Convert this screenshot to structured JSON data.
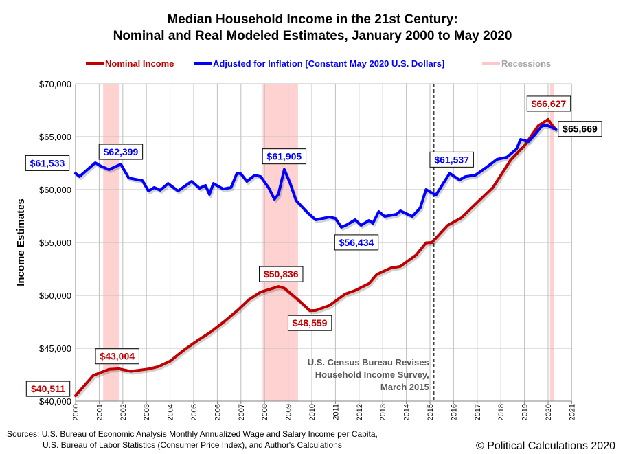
{
  "chart_data": {
    "type": "line",
    "title_line1": "Median Household Income in the 21st Century:",
    "title_line2": "Nominal and Real Modeled Estimates, January 2000 to May 2020",
    "ylabel": "Income Estimates",
    "xlabel": "",
    "ylim": [
      40000,
      70000
    ],
    "xlim": [
      "2000-01",
      "2021-01"
    ],
    "yticks": [
      40000,
      45000,
      50000,
      55000,
      60000,
      65000,
      70000
    ],
    "ytick_labels": [
      "$40,000",
      "$45,000",
      "$50,000",
      "$55,000",
      "$60,000",
      "$65,000",
      "$70,000"
    ],
    "xtick_labels": [
      "2000",
      "2001",
      "2002",
      "2003",
      "2004",
      "2005",
      "2006",
      "2007",
      "2008",
      "2009",
      "2010",
      "2011",
      "2012",
      "2013",
      "2014",
      "2015",
      "2016",
      "2017",
      "2018",
      "2019",
      "2020",
      "2021"
    ],
    "grid": true,
    "legend_placement": "top",
    "legend": [
      {
        "label": "Nominal Income",
        "color": "#c00000"
      },
      {
        "label": "Adjusted for Inflation [Constant May 2020 U.S. Dollars]",
        "color": "#0000ff"
      },
      {
        "label": "Recessions",
        "color": "#ffc7c7"
      }
    ],
    "recessions": [
      [
        "2001-03",
        "2001-11"
      ],
      [
        "2007-12",
        "2009-06"
      ],
      [
        "2020-02",
        "2020-04"
      ]
    ],
    "series": [
      {
        "name": "Nominal Income",
        "color": "#c00000",
        "points": [
          [
            "2000-01",
            40511
          ],
          [
            "2000-10",
            42430
          ],
          [
            "2001-06",
            43004
          ],
          [
            "2001-11",
            43060
          ],
          [
            "2002-05",
            42820
          ],
          [
            "2003-02",
            43040
          ],
          [
            "2003-07",
            43260
          ],
          [
            "2004-01",
            43780
          ],
          [
            "2004-08",
            44820
          ],
          [
            "2005-03",
            45730
          ],
          [
            "2005-09",
            46450
          ],
          [
            "2006-05",
            47600
          ],
          [
            "2006-12",
            48700
          ],
          [
            "2007-05",
            49590
          ],
          [
            "2007-11",
            50310
          ],
          [
            "2008-08",
            50836
          ],
          [
            "2008-11",
            50680
          ],
          [
            "2009-06",
            49590
          ],
          [
            "2009-12",
            48559
          ],
          [
            "2010-03",
            48580
          ],
          [
            "2010-10",
            49050
          ],
          [
            "2011-06",
            50130
          ],
          [
            "2011-11",
            50460
          ],
          [
            "2012-06",
            51110
          ],
          [
            "2012-10",
            51980
          ],
          [
            "2013-05",
            52580
          ],
          [
            "2013-10",
            52740
          ],
          [
            "2014-06",
            53820
          ],
          [
            "2014-11",
            54970
          ],
          [
            "2015-02",
            55000
          ],
          [
            "2015-10",
            56620
          ],
          [
            "2016-05",
            57340
          ],
          [
            "2016-10",
            58250
          ],
          [
            "2017-09",
            60200
          ],
          [
            "2018-06",
            62790
          ],
          [
            "2019-01",
            64150
          ],
          [
            "2019-08",
            66040
          ],
          [
            "2020-01",
            66627
          ],
          [
            "2020-03",
            66100
          ],
          [
            "2020-05",
            65669
          ]
        ]
      },
      {
        "name": "Adjusted for Inflation [Constant May 2020 U.S. Dollars]",
        "color": "#0000ff",
        "points": [
          [
            "2000-01",
            61533
          ],
          [
            "2000-03",
            61234
          ],
          [
            "2000-11",
            62532
          ],
          [
            "2001-02",
            62200
          ],
          [
            "2001-06",
            61880
          ],
          [
            "2001-12",
            62399
          ],
          [
            "2002-04",
            61100
          ],
          [
            "2002-11",
            60840
          ],
          [
            "2003-02",
            59870
          ],
          [
            "2003-05",
            60200
          ],
          [
            "2003-08",
            59940
          ],
          [
            "2003-12",
            60580
          ],
          [
            "2004-05",
            59870
          ],
          [
            "2004-08",
            60260
          ],
          [
            "2004-12",
            60780
          ],
          [
            "2005-04",
            60130
          ],
          [
            "2005-07",
            60390
          ],
          [
            "2005-09",
            59545
          ],
          [
            "2005-11",
            60580
          ],
          [
            "2006-04",
            60060
          ],
          [
            "2006-08",
            60200
          ],
          [
            "2006-11",
            61560
          ],
          [
            "2007-01",
            61490
          ],
          [
            "2007-04",
            60780
          ],
          [
            "2007-08",
            61360
          ],
          [
            "2007-11",
            61230
          ],
          [
            "2008-03",
            60200
          ],
          [
            "2008-06",
            59090
          ],
          [
            "2008-08",
            59545
          ],
          [
            "2008-11",
            61905
          ],
          [
            "2009-02",
            60580
          ],
          [
            "2009-05",
            58960
          ],
          [
            "2009-11",
            57790
          ],
          [
            "2010-03",
            57140
          ],
          [
            "2010-10",
            57400
          ],
          [
            "2011-01",
            57270
          ],
          [
            "2011-04",
            56434
          ],
          [
            "2011-07",
            56690
          ],
          [
            "2011-11",
            57140
          ],
          [
            "2012-02",
            56620
          ],
          [
            "2012-06",
            57080
          ],
          [
            "2012-08",
            56820
          ],
          [
            "2012-11",
            57920
          ],
          [
            "2013-02",
            57470
          ],
          [
            "2013-08",
            57660
          ],
          [
            "2013-10",
            57990
          ],
          [
            "2014-04",
            57470
          ],
          [
            "2014-08",
            58250
          ],
          [
            "2014-11",
            60000
          ],
          [
            "2015-04",
            59480
          ],
          [
            "2015-11",
            61537
          ],
          [
            "2016-04",
            60910
          ],
          [
            "2016-07",
            61230
          ],
          [
            "2016-12",
            61360
          ],
          [
            "2017-06",
            62140
          ],
          [
            "2017-11",
            62860
          ],
          [
            "2018-04",
            63050
          ],
          [
            "2018-09",
            63830
          ],
          [
            "2018-11",
            64740
          ],
          [
            "2019-03",
            64540
          ],
          [
            "2019-06",
            65130
          ],
          [
            "2019-10",
            66040
          ],
          [
            "2020-01",
            66040
          ],
          [
            "2020-05",
            65669
          ]
        ]
      }
    ],
    "annotations": [
      {
        "text": "$61,533",
        "date": "2000-01",
        "value": 61533,
        "color": "#0000ff"
      },
      {
        "text": "$62,399",
        "date": "2001-12",
        "value": 62399,
        "color": "#0000ff"
      },
      {
        "text": "$61,905",
        "date": "2008-11",
        "value": 61905,
        "color": "#0000ff"
      },
      {
        "text": "$56,434",
        "date": "2011-04",
        "value": 56434,
        "color": "#0000ff"
      },
      {
        "text": "$61,537",
        "date": "2015-11",
        "value": 61537,
        "color": "#0000ff"
      },
      {
        "text": "$65,669",
        "date": "2020-05",
        "value": 65669,
        "color": "#000000"
      },
      {
        "text": "$66,627",
        "date": "2020-01",
        "value": 66627,
        "color": "#c00000"
      },
      {
        "text": "$50,836",
        "date": "2008-08",
        "value": 50836,
        "color": "#c00000"
      },
      {
        "text": "$48,559",
        "date": "2009-12",
        "value": 48559,
        "color": "#c00000"
      },
      {
        "text": "$43,004",
        "date": "2001-06",
        "value": 43004,
        "color": "#c00000"
      },
      {
        "text": "$40,511",
        "date": "2000-01",
        "value": 40511,
        "color": "#c00000"
      }
    ],
    "event_line": {
      "date": "2015-03",
      "lines": [
        "U.S. Census Bureau Revises",
        "Household Income Survey,",
        "March 2015"
      ]
    }
  },
  "footer": {
    "sources_line1": "Sources: U.S. Bureau of Economic Analysis Monthly Annualized Wage and Salary Income per Capita,",
    "sources_line2": "U.S. Bureau of Labor Statistics (Consumer  Price Index), and Author's Calculations",
    "copyright": "© Political Calculations 2020"
  }
}
